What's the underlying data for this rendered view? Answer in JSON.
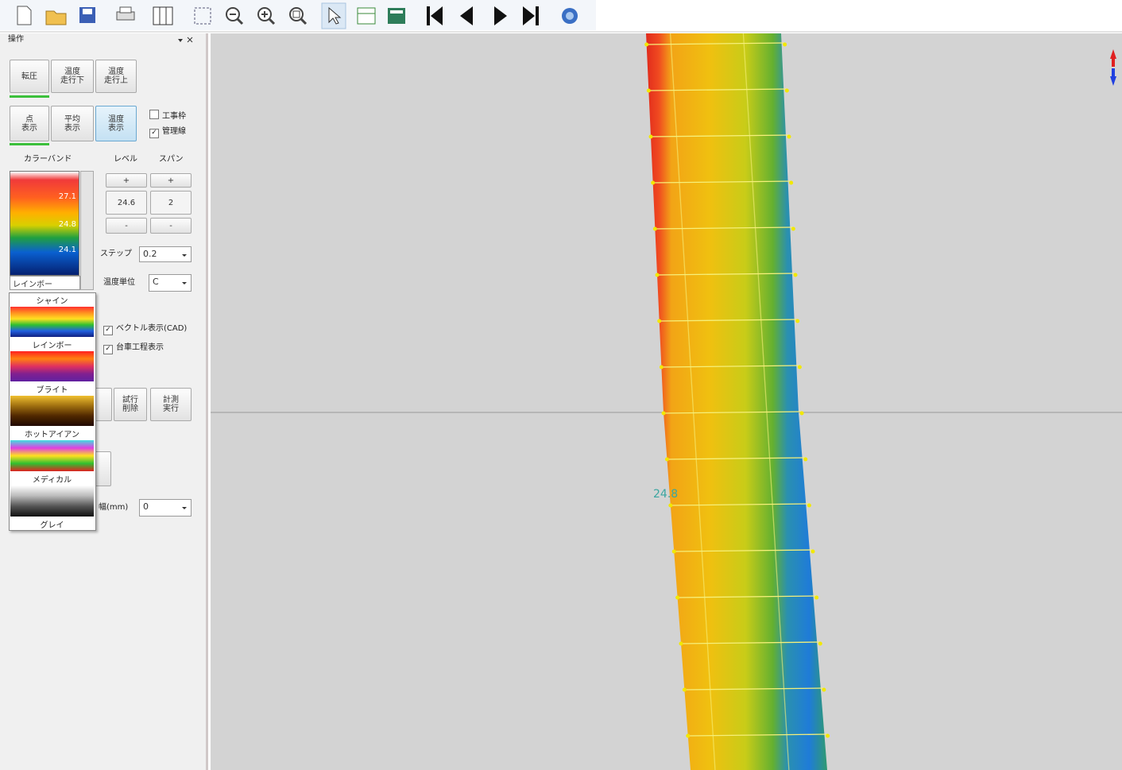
{
  "panel": {
    "title": "操作",
    "mode_buttons": [
      "転圧",
      "温度\n走行下",
      "温度\n走行上"
    ],
    "view_buttons": [
      "点\n表示",
      "平均\n表示",
      "温度\n表示"
    ],
    "checks": [
      "工事枠",
      "管理線"
    ],
    "color_band": {
      "heading": "カラーバンド",
      "labels": [
        "27.1",
        "24.8",
        "24.1"
      ],
      "palette": "レインボー"
    },
    "level": {
      "heading": "レベル",
      "plus": "+",
      "value": "24.6",
      "minus": "-"
    },
    "span": {
      "heading": "スパン",
      "plus": "+",
      "value": "2",
      "minus": "-"
    },
    "step": {
      "label": "ステップ",
      "value": "0.2"
    },
    "unit": {
      "label": "温度単位",
      "value": "C"
    },
    "palette_list": [
      "シャイン",
      "レインボー",
      "ブライト",
      "ホットアイアン",
      "メディカル",
      "グレイ"
    ],
    "options": [
      "ベクトル表示(CAD)",
      "台車工程表示"
    ],
    "action_buttons": [
      "試行\n削除",
      "計測\n実行"
    ],
    "width": {
      "label": "幅(mm)",
      "value": "0"
    }
  },
  "map": {
    "center_label": "24.8"
  }
}
